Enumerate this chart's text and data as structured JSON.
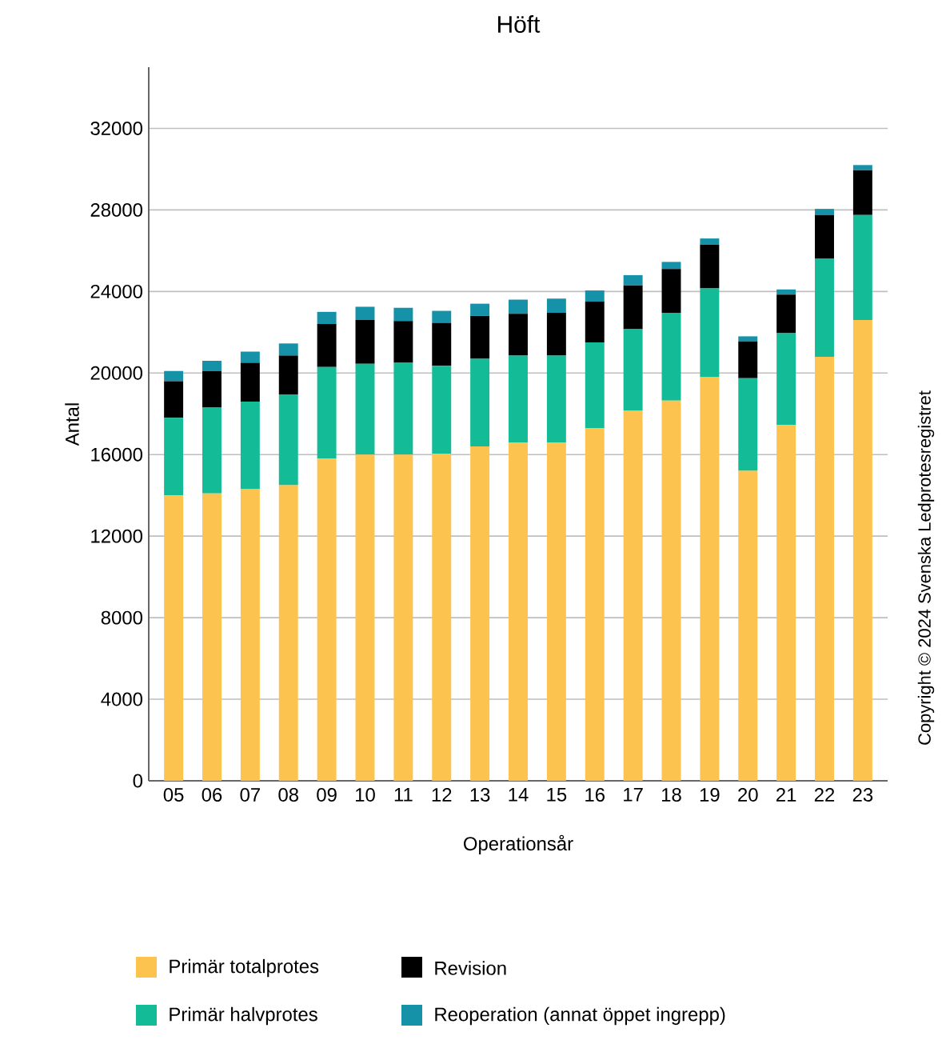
{
  "chart_data": {
    "type": "bar",
    "stacked": true,
    "title": "Höft",
    "xlabel": "Operationsår",
    "ylabel": "Antal",
    "categories": [
      "05",
      "06",
      "07",
      "08",
      "09",
      "10",
      "11",
      "12",
      "13",
      "14",
      "15",
      "16",
      "17",
      "18",
      "19",
      "20",
      "21",
      "22",
      "23"
    ],
    "series": [
      {
        "name": "Primär totalprotes",
        "color": "#fdc34f",
        "values": [
          14000,
          14100,
          14300,
          14500,
          15800,
          16000,
          16000,
          16050,
          16400,
          16600,
          16600,
          17300,
          18150,
          18650,
          19800,
          15200,
          17450,
          20800,
          22600
        ]
      },
      {
        "name": "Primär halvprotes",
        "color": "#13bc97",
        "values": [
          3800,
          4200,
          4300,
          4450,
          4500,
          4450,
          4500,
          4300,
          4300,
          4250,
          4250,
          4200,
          4000,
          4300,
          4350,
          4550,
          4500,
          4800,
          5150
        ]
      },
      {
        "name": "Revision",
        "color": "#000000",
        "values": [
          1800,
          1800,
          1900,
          1900,
          2100,
          2150,
          2050,
          2100,
          2100,
          2050,
          2100,
          2000,
          2150,
          2150,
          2150,
          1800,
          1900,
          2150,
          2200
        ]
      },
      {
        "name": "Reoperation (annat öppet ingrepp)",
        "color": "#1592a8",
        "values": [
          500,
          500,
          550,
          600,
          600,
          650,
          650,
          600,
          600,
          700,
          700,
          550,
          500,
          350,
          300,
          250,
          250,
          300,
          250
        ]
      }
    ],
    "ylim": [
      0,
      35000
    ],
    "yticks": [
      0,
      4000,
      8000,
      12000,
      16000,
      20000,
      24000,
      28000,
      32000
    ],
    "grid": "y",
    "legend": "bottom",
    "annotations": [
      "Copyright © 2024 Svenska Ledprotesregistret"
    ]
  }
}
